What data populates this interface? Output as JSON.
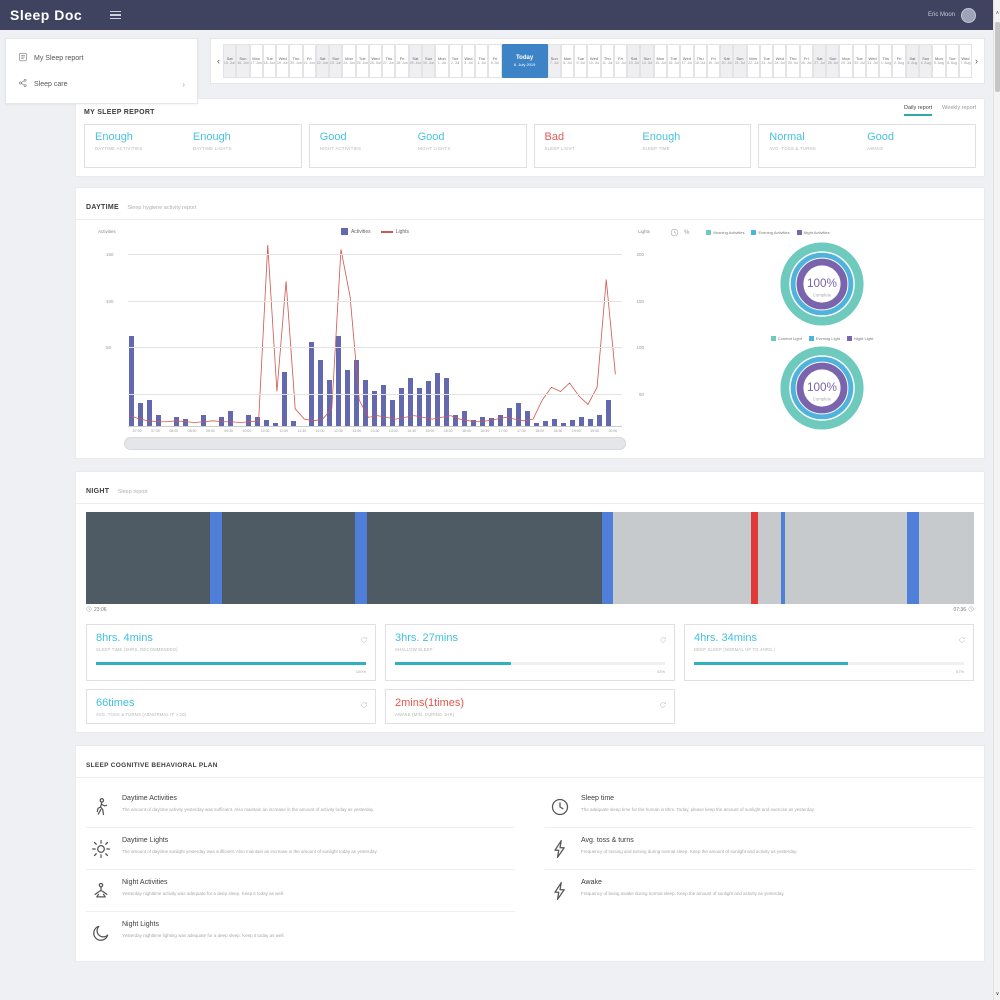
{
  "navbar": {
    "brand": "Sleep Doc",
    "user": "Eric Moon"
  },
  "sidebar": {
    "items": [
      {
        "label": "My Sleep report"
      },
      {
        "label": "Sleep care"
      }
    ]
  },
  "date_strip": {
    "prev": "‹",
    "next": "›",
    "today": {
      "label": "Today",
      "date": "6. July 2019"
    },
    "days_before": [
      {
        "dow": "Sat",
        "date": "15. Jun"
      },
      {
        "dow": "Sun",
        "date": "16. Jun"
      },
      {
        "dow": "Mon",
        "date": "17. Jun"
      },
      {
        "dow": "Tue",
        "date": "18. Jun"
      },
      {
        "dow": "Wed",
        "date": "19. Jun"
      },
      {
        "dow": "Thu",
        "date": "20. Jun"
      },
      {
        "dow": "Fri",
        "date": "21. Jun"
      },
      {
        "dow": "Sat",
        "date": "22. Jun"
      },
      {
        "dow": "Sun",
        "date": "23. Jun"
      },
      {
        "dow": "Mon",
        "date": "24. Jun"
      },
      {
        "dow": "Tue",
        "date": "25. Jun"
      },
      {
        "dow": "Wed",
        "date": "26. Jun"
      },
      {
        "dow": "Thu",
        "date": "27. Jun"
      },
      {
        "dow": "Fri",
        "date": "28. Jun"
      },
      {
        "dow": "Sat",
        "date": "29. Jun"
      },
      {
        "dow": "Sun",
        "date": "30. Jun"
      },
      {
        "dow": "Mon",
        "date": "1. Jul"
      },
      {
        "dow": "Tue",
        "date": "2. Jul"
      },
      {
        "dow": "Wed",
        "date": "3. Jul"
      },
      {
        "dow": "Thu",
        "date": "4. Jul"
      },
      {
        "dow": "Fri",
        "date": "5. Jul"
      }
    ],
    "days_after": [
      {
        "dow": "Sun",
        "date": "7. Jul"
      },
      {
        "dow": "Mon",
        "date": "8. Jul"
      },
      {
        "dow": "Tue",
        "date": "9. Jul"
      },
      {
        "dow": "Wed",
        "date": "10. Jul"
      },
      {
        "dow": "Thu",
        "date": "11. Jul"
      },
      {
        "dow": "Fri",
        "date": "12. Jul"
      },
      {
        "dow": "Sat",
        "date": "13. Jul"
      },
      {
        "dow": "Sun",
        "date": "14. Jul"
      },
      {
        "dow": "Mon",
        "date": "15. Jul"
      },
      {
        "dow": "Tue",
        "date": "16. Jul"
      },
      {
        "dow": "Wed",
        "date": "17. Jul"
      },
      {
        "dow": "Thu",
        "date": "18. Jul"
      },
      {
        "dow": "Fri",
        "date": "19. Jul"
      },
      {
        "dow": "Sat",
        "date": "20. Jul"
      },
      {
        "dow": "Sun",
        "date": "21. Jul"
      },
      {
        "dow": "Mon",
        "date": "22. Jul"
      },
      {
        "dow": "Tue",
        "date": "23. Jul"
      },
      {
        "dow": "Wed",
        "date": "24. Jul"
      },
      {
        "dow": "Thu",
        "date": "25. Jul"
      },
      {
        "dow": "Fri",
        "date": "26. Jul"
      },
      {
        "dow": "Sat",
        "date": "27. Jul"
      },
      {
        "dow": "Sun",
        "date": "28. Jul"
      },
      {
        "dow": "Mon",
        "date": "29. Jul"
      },
      {
        "dow": "Tue",
        "date": "30. Jul"
      },
      {
        "dow": "Wed",
        "date": "31. Jul"
      },
      {
        "dow": "Thu",
        "date": "1. Aug"
      },
      {
        "dow": "Fri",
        "date": "2. Aug"
      },
      {
        "dow": "Sat",
        "date": "3. Aug"
      },
      {
        "dow": "Sun",
        "date": "4. Aug"
      },
      {
        "dow": "Mon",
        "date": "5. Aug"
      },
      {
        "dow": "Tue",
        "date": "6. Aug"
      },
      {
        "dow": "Wed",
        "date": "7. Aug"
      }
    ]
  },
  "report": {
    "title": "MY SLEEP REPORT",
    "tabs": [
      {
        "label": "Daily report",
        "active": true
      },
      {
        "label": "Weekly report",
        "active": false
      }
    ],
    "summary_cards": [
      {
        "items": [
          {
            "value": "Enough",
            "label": "DAYTIME ACTIVITIES",
            "color": "blue"
          },
          {
            "value": "Enough",
            "label": "DAYTIME LIGHTS",
            "color": "blue"
          }
        ]
      },
      {
        "items": [
          {
            "value": "Good",
            "label": "NIGHT ACTIVITIES",
            "color": "blue"
          },
          {
            "value": "Good",
            "label": "NIGHT LIGHTS",
            "color": "blue"
          }
        ]
      },
      {
        "items": [
          {
            "value": "Bad",
            "label": "SLEEP LIGHT",
            "color": "red"
          },
          {
            "value": "Enough",
            "label": "SLEEP TIME",
            "color": "blue"
          }
        ]
      },
      {
        "items": [
          {
            "value": "Normal",
            "label": "AVG. TOSS & TURNS",
            "color": "blue"
          },
          {
            "value": "Good",
            "label": "AWAKE",
            "color": "blue"
          }
        ]
      }
    ]
  },
  "daytime": {
    "title": "DAYTIME",
    "subtitle": "Sleep hygiene activity report",
    "chart_data": {
      "type": "bar",
      "legend": [
        {
          "label": "Activities",
          "color": "#6468ae",
          "type": "bar"
        },
        {
          "label": "Lights",
          "color": "#d2574f",
          "type": "line"
        }
      ],
      "left_axis": {
        "label": "Activities",
        "ticks": [
          "150",
          "100",
          "50",
          ""
        ]
      },
      "right_axis": {
        "label": "Lights",
        "ticks": [
          "200",
          "150",
          "100",
          "50"
        ]
      },
      "gridlines_pct": [
        8,
        33,
        58,
        83
      ],
      "x": [
        "07:00",
        "07:30",
        "08:00",
        "08:30",
        "09:00",
        "09:30",
        "10:00",
        "10:30",
        "11:00",
        "11:30",
        "12:00",
        "12:30",
        "13:00",
        "13:30",
        "14:00",
        "14:30",
        "15:00",
        "15:30",
        "16:00",
        "16:30",
        "17:00",
        "17:30",
        "18:00",
        "18:30",
        "19:00",
        "19:30",
        "20:00"
      ],
      "series": [
        {
          "name": "Activities",
          "axis_max": 163,
          "values": [
            78,
            20,
            23,
            10,
            0,
            8,
            6,
            0,
            10,
            0,
            8,
            13,
            0,
            10,
            8,
            5,
            3,
            47,
            4,
            0,
            73,
            57,
            40,
            78,
            49,
            57,
            40,
            30,
            36,
            23,
            33,
            42,
            33,
            39,
            46,
            42,
            10,
            13,
            5,
            8,
            7,
            10,
            16,
            20,
            13,
            3,
            4,
            6,
            3,
            5,
            8,
            6,
            10,
            23
          ]
        },
        {
          "name": "Lights",
          "axis_max": 217,
          "values": [
            12,
            8,
            6,
            5,
            5,
            6,
            5,
            4,
            5,
            6,
            5,
            5,
            4,
            5,
            6,
            210,
            40,
            168,
            20,
            8,
            6,
            8,
            20,
            205,
            150,
            30,
            10,
            12,
            10,
            8,
            10,
            12,
            10,
            8,
            10,
            12,
            8,
            6,
            5,
            6,
            8,
            10,
            8,
            6,
            8,
            30,
            45,
            40,
            50,
            35,
            25,
            45,
            170,
            60
          ]
        }
      ]
    },
    "donuts": [
      {
        "value": "100%",
        "sub": "Complete",
        "legend": [
          {
            "label": "Morning Activities",
            "color": "#6fcabe"
          },
          {
            "label": "Evening Activities",
            "color": "#4fb3dc"
          },
          {
            "label": "Night Activities",
            "color": "#7a64ad"
          }
        ]
      },
      {
        "value": "100%",
        "sub": "Complete",
        "legend": [
          {
            "label": "Comfort Light",
            "color": "#6fcabe"
          },
          {
            "label": "Evening Light",
            "color": "#4fb3dc"
          },
          {
            "label": "Night Light",
            "color": "#7a64ad"
          }
        ]
      }
    ]
  },
  "night": {
    "title": "NIGHT",
    "subtitle": "Sleep report",
    "timeline": {
      "start": "23:06",
      "end": "07:36",
      "segments": [
        {
          "kind": "deep",
          "color": "#4e5a64",
          "width": 14
        },
        {
          "kind": "toss",
          "color": "#4f7fd9",
          "width": 1.3
        },
        {
          "kind": "deep",
          "color": "#4e5a64",
          "width": 15
        },
        {
          "kind": "toss",
          "color": "#4f7fd9",
          "width": 1.3
        },
        {
          "kind": "deep",
          "color": "#4e5a64",
          "width": 26.5
        },
        {
          "kind": "toss",
          "color": "#4f7fd9",
          "width": 1.3
        },
        {
          "kind": "shallow",
          "color": "#c7cacd",
          "width": 15.5
        },
        {
          "kind": "awake",
          "color": "#e03a3a",
          "width": 0.8
        },
        {
          "kind": "shallow",
          "color": "#c7cacd",
          "width": 2.6
        },
        {
          "kind": "toss",
          "color": "#4f7fd9",
          "width": 0.4
        },
        {
          "kind": "shallow",
          "color": "#c7cacd",
          "width": 13.8
        },
        {
          "kind": "toss",
          "color": "#4f7fd9",
          "width": 1.3
        },
        {
          "kind": "shallow",
          "color": "#c7cacd",
          "width": 6.2
        }
      ]
    },
    "stat_cards": [
      {
        "value": "8hrs. 4mins",
        "label": "SLEEP TIME (8HRS. RECOMMENDED)",
        "color": "blue",
        "percent": 100,
        "percent_label": "100%"
      },
      {
        "value": "3hrs. 27mins",
        "label": "SHALLOW SLEEP",
        "color": "blue",
        "percent": 43,
        "percent_label": "43%"
      },
      {
        "value": "4hrs. 34mins",
        "label": "DEEP SLEEP (NORMAL UP TO 4HRS.)",
        "color": "blue",
        "percent": 57,
        "percent_label": "57%"
      },
      {
        "value": "66times",
        "label": "AVG. TOSS & TURNS (ABNORMAL IF > 10)",
        "color": "blue",
        "percent": null,
        "percent_label": ""
      },
      {
        "value": "2mins(1times)",
        "label": "AWAKE (MIN. DURING 1HR)",
        "color": "red",
        "percent": null,
        "percent_label": ""
      }
    ]
  },
  "plan": {
    "title": "SLEEP COGNITIVE BEHAVIORAL PLAN",
    "items": [
      {
        "icon": "walking",
        "title": "Daytime Activities",
        "desc": "The amount of daytime activity yesterday was sufficient. Also maintain an increase in the amount of activity today as yesterday."
      },
      {
        "icon": "sun",
        "title": "Daytime Lights",
        "desc": "The amount of daytime sunlight yesterday was sufficient. Also maintain an increase in the amount of sunlight today as yesterday."
      },
      {
        "icon": "meditation",
        "title": "Night Activities",
        "desc": "Yesterday nighttime activity was adequate for a deep sleep. Keep it today as well."
      },
      {
        "icon": "moon",
        "title": "Night Lights",
        "desc": "Yesterday nighttime lighting was adequate for a deep sleep. Keep it today as well."
      },
      {
        "icon": "clock",
        "title": "Sleep time",
        "desc": "The adequate sleep time for the human is 8hrs. Today, please keep the amount of sunlight and exercise as yesterday."
      },
      {
        "icon": "bolt",
        "title": "Avg. toss & turns",
        "desc": "Frequency of tossing and turning during normal sleep. Keep the amount of sunlight and activity as yesterday."
      },
      {
        "icon": "bolt",
        "title": "Awake",
        "desc": "Frequency of being awake during normal sleep. Keep the amount of sunlight and activity as yesterday."
      }
    ]
  }
}
